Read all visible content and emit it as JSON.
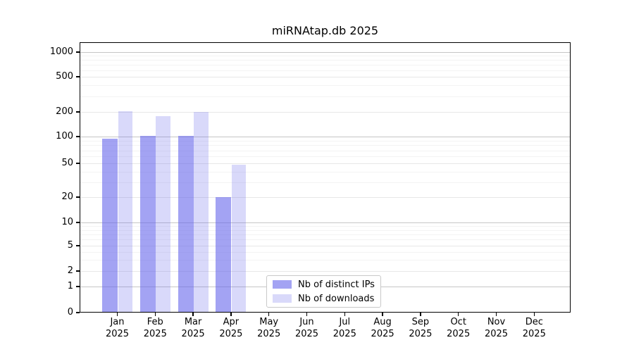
{
  "chart_data": {
    "type": "bar",
    "title": "miRNAtap.db 2025",
    "categories": [
      "Jan 2025",
      "Feb 2025",
      "Mar 2025",
      "Apr 2025",
      "May 2025",
      "Jun 2025",
      "Jul 2025",
      "Aug 2025",
      "Sep 2025",
      "Oct 2025",
      "Nov 2025",
      "Dec 2025"
    ],
    "series": [
      {
        "name": "Nb of distinct IPs",
        "color": "rgba(102,102,235,0.6)",
        "color_hex": "#a6a6f2",
        "values": [
          95,
          101,
          103,
          20,
          0,
          0,
          0,
          0,
          0,
          0,
          0,
          0
        ]
      },
      {
        "name": "Nb of downloads",
        "color": "rgba(102,102,235,0.25)",
        "color_hex": "#d9d9f8",
        "values": [
          205,
          177,
          200,
          48,
          0,
          0,
          0,
          0,
          0,
          0,
          0,
          0
        ]
      }
    ],
    "xlabel": "",
    "ylabel": "",
    "yscale": "pseudo-log",
    "ylim": [
      0,
      1200
    ],
    "yticks": [
      0,
      1,
      2,
      5,
      10,
      20,
      50,
      100,
      200,
      500,
      1000
    ],
    "y_minor_ticks": [
      3,
      4,
      6,
      7,
      8,
      9,
      30,
      40,
      60,
      70,
      80,
      90,
      300,
      400,
      600,
      700,
      800,
      900
    ],
    "grid": "horizontal",
    "legend_position": "lower center",
    "colors": {
      "axis": "#000000",
      "grid_decade": "#c6c6c6",
      "grid_major": "#e7e7e7",
      "grid_minor": "#f3f3f3",
      "background": "#ffffff"
    }
  }
}
